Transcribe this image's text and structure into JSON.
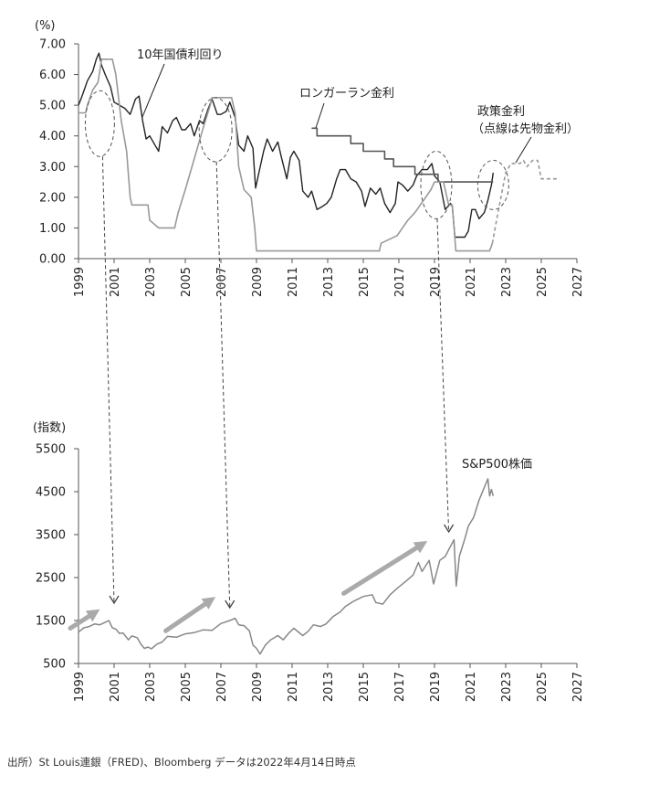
{
  "source_note": "出所）St Louis連銀（FRED)、Bloomberg データは2022年4月14日時点",
  "chart_data": [
    {
      "type": "line",
      "unit_label": "(%)",
      "x_ticks": [
        "1999",
        "2001",
        "2003",
        "2005",
        "2007",
        "2009",
        "2011",
        "2013",
        "2015",
        "2017",
        "2019",
        "2021",
        "2023",
        "2025",
        "2027"
      ],
      "y_ticks": [
        "7.00",
        "6.00",
        "5.00",
        "4.00",
        "3.00",
        "2.00",
        "1.00",
        "0.00"
      ],
      "xlim": [
        1999,
        2027
      ],
      "ylim": [
        0,
        7
      ],
      "annotations": {
        "yield": "10年国債利回り",
        "longrun": "ロンガーラン金利",
        "policy_1": "政策金利",
        "policy_2": "（点線は先物金利）"
      },
      "series": [
        {
          "name": "10年国債利回り",
          "color": "#222222",
          "points": [
            [
              1999.0,
              5.0
            ],
            [
              1999.2,
              5.3
            ],
            [
              1999.5,
              5.8
            ],
            [
              1999.8,
              6.1
            ],
            [
              2000.0,
              6.5
            ],
            [
              2000.15,
              6.7
            ],
            [
              2000.3,
              6.3
            ],
            [
              2000.5,
              6.0
            ],
            [
              2000.8,
              5.6
            ],
            [
              2001.0,
              5.1
            ],
            [
              2001.3,
              5.0
            ],
            [
              2001.6,
              4.9
            ],
            [
              2001.9,
              4.7
            ],
            [
              2002.2,
              5.2
            ],
            [
              2002.4,
              5.3
            ],
            [
              2002.6,
              4.5
            ],
            [
              2002.8,
              3.9
            ],
            [
              2003.0,
              4.0
            ],
            [
              2003.3,
              3.7
            ],
            [
              2003.5,
              3.5
            ],
            [
              2003.7,
              4.3
            ],
            [
              2004.0,
              4.1
            ],
            [
              2004.3,
              4.5
            ],
            [
              2004.5,
              4.6
            ],
            [
              2004.8,
              4.2
            ],
            [
              2005.0,
              4.2
            ],
            [
              2005.3,
              4.4
            ],
            [
              2005.5,
              4.0
            ],
            [
              2005.8,
              4.5
            ],
            [
              2006.0,
              4.4
            ],
            [
              2006.3,
              4.9
            ],
            [
              2006.5,
              5.2
            ],
            [
              2006.8,
              4.7
            ],
            [
              2007.0,
              4.7
            ],
            [
              2007.3,
              4.8
            ],
            [
              2007.5,
              5.1
            ],
            [
              2007.8,
              4.6
            ],
            [
              2008.0,
              3.7
            ],
            [
              2008.3,
              3.5
            ],
            [
              2008.5,
              4.0
            ],
            [
              2008.8,
              3.6
            ],
            [
              2008.95,
              2.3
            ],
            [
              2009.1,
              2.7
            ],
            [
              2009.4,
              3.5
            ],
            [
              2009.6,
              3.9
            ],
            [
              2009.9,
              3.5
            ],
            [
              2010.2,
              3.8
            ],
            [
              2010.4,
              3.3
            ],
            [
              2010.7,
              2.6
            ],
            [
              2010.9,
              3.3
            ],
            [
              2011.1,
              3.5
            ],
            [
              2011.4,
              3.2
            ],
            [
              2011.6,
              2.2
            ],
            [
              2011.9,
              2.0
            ],
            [
              2012.1,
              2.2
            ],
            [
              2012.4,
              1.6
            ],
            [
              2012.7,
              1.7
            ],
            [
              2012.95,
              1.8
            ],
            [
              2013.2,
              2.0
            ],
            [
              2013.5,
              2.6
            ],
            [
              2013.7,
              2.9
            ],
            [
              2014.0,
              2.9
            ],
            [
              2014.3,
              2.6
            ],
            [
              2014.6,
              2.5
            ],
            [
              2014.9,
              2.2
            ],
            [
              2015.1,
              1.7
            ],
            [
              2015.4,
              2.3
            ],
            [
              2015.7,
              2.1
            ],
            [
              2015.95,
              2.3
            ],
            [
              2016.2,
              1.8
            ],
            [
              2016.5,
              1.5
            ],
            [
              2016.8,
              1.8
            ],
            [
              2016.95,
              2.5
            ],
            [
              2017.2,
              2.4
            ],
            [
              2017.5,
              2.2
            ],
            [
              2017.8,
              2.4
            ],
            [
              2018.0,
              2.7
            ],
            [
              2018.3,
              2.9
            ],
            [
              2018.6,
              2.9
            ],
            [
              2018.85,
              3.1
            ],
            [
              2019.0,
              2.7
            ],
            [
              2019.3,
              2.5
            ],
            [
              2019.6,
              1.6
            ],
            [
              2019.9,
              1.8
            ],
            [
              2020.0,
              1.7
            ],
            [
              2020.15,
              0.7
            ],
            [
              2020.4,
              0.7
            ],
            [
              2020.7,
              0.7
            ],
            [
              2020.9,
              0.9
            ],
            [
              2021.1,
              1.6
            ],
            [
              2021.3,
              1.6
            ],
            [
              2021.5,
              1.3
            ],
            [
              2021.8,
              1.5
            ],
            [
              2022.0,
              1.9
            ],
            [
              2022.2,
              2.4
            ],
            [
              2022.3,
              2.8
            ]
          ]
        },
        {
          "name": "ロンガーラン金利",
          "color": "#555555",
          "points": [
            [
              2012.1,
              4.25
            ],
            [
              2012.4,
              4.25
            ],
            [
              2012.4,
              4.0
            ],
            [
              2014.3,
              4.0
            ],
            [
              2014.3,
              3.75
            ],
            [
              2015.0,
              3.75
            ],
            [
              2015.0,
              3.5
            ],
            [
              2016.2,
              3.5
            ],
            [
              2016.2,
              3.25
            ],
            [
              2016.7,
              3.25
            ],
            [
              2016.7,
              3.0
            ],
            [
              2017.9,
              3.0
            ],
            [
              2017.9,
              2.75
            ],
            [
              2019.2,
              2.75
            ],
            [
              2019.2,
              2.5
            ],
            [
              2022.3,
              2.5
            ]
          ]
        },
        {
          "name": "政策金利",
          "color": "#999999",
          "points": [
            [
              1999.0,
              4.75
            ],
            [
              1999.4,
              4.75
            ],
            [
              1999.5,
              5.0
            ],
            [
              1999.8,
              5.5
            ],
            [
              2000.1,
              5.75
            ],
            [
              2000.3,
              6.5
            ],
            [
              2000.9,
              6.5
            ],
            [
              2001.1,
              6.0
            ],
            [
              2001.4,
              4.5
            ],
            [
              2001.7,
              3.5
            ],
            [
              2001.9,
              2.0
            ],
            [
              2002.0,
              1.75
            ],
            [
              2002.9,
              1.75
            ],
            [
              2003.0,
              1.25
            ],
            [
              2003.5,
              1.0
            ],
            [
              2004.4,
              1.0
            ],
            [
              2004.6,
              1.5
            ],
            [
              2005.0,
              2.25
            ],
            [
              2005.5,
              3.25
            ],
            [
              2006.0,
              4.25
            ],
            [
              2006.4,
              5.0
            ],
            [
              2006.5,
              5.25
            ],
            [
              2007.6,
              5.25
            ],
            [
              2007.8,
              4.75
            ],
            [
              2008.0,
              3.0
            ],
            [
              2008.3,
              2.25
            ],
            [
              2008.7,
              2.0
            ],
            [
              2008.9,
              1.0
            ],
            [
              2009.0,
              0.25
            ],
            [
              2015.9,
              0.25
            ],
            [
              2016.0,
              0.5
            ],
            [
              2016.9,
              0.75
            ],
            [
              2017.2,
              1.0
            ],
            [
              2017.5,
              1.25
            ],
            [
              2017.9,
              1.5
            ],
            [
              2018.2,
              1.75
            ],
            [
              2018.5,
              2.0
            ],
            [
              2018.8,
              2.25
            ],
            [
              2019.0,
              2.5
            ],
            [
              2019.5,
              2.5
            ],
            [
              2019.6,
              2.25
            ],
            [
              2019.8,
              1.75
            ],
            [
              2020.0,
              1.75
            ],
            [
              2020.2,
              0.25
            ],
            [
              2022.1,
              0.25
            ],
            [
              2022.25,
              0.5
            ]
          ]
        },
        {
          "name": "先物金利",
          "color": "#999999",
          "dashed": true,
          "points": [
            [
              2022.25,
              0.5
            ],
            [
              2022.5,
              1.3
            ],
            [
              2022.8,
              2.2
            ],
            [
              2023.0,
              2.8
            ],
            [
              2023.3,
              3.1
            ],
            [
              2023.8,
              3.1
            ],
            [
              2024.0,
              3.2
            ],
            [
              2024.2,
              3.0
            ],
            [
              2024.5,
              3.2
            ],
            [
              2024.8,
              3.2
            ],
            [
              2025.0,
              2.6
            ],
            [
              2026.0,
              2.6
            ]
          ]
        }
      ],
      "highlight_years": [
        2000.2,
        2006.7,
        2019.1,
        2022.3
      ]
    },
    {
      "type": "line",
      "unit_label": "(指数)",
      "x_ticks": [
        "1999",
        "2001",
        "2003",
        "2005",
        "2007",
        "2009",
        "2011",
        "2013",
        "2015",
        "2017",
        "2019",
        "2021",
        "2023",
        "2025",
        "2027"
      ],
      "y_ticks": [
        "5500",
        "4500",
        "3500",
        "2500",
        "1500",
        "500"
      ],
      "xlim": [
        1999,
        2027
      ],
      "ylim": [
        500,
        5500
      ],
      "annotations": {
        "sp500": "S&P500株価"
      },
      "series": [
        {
          "name": "S&P500株価",
          "color": "#888888",
          "points": [
            [
              1999.0,
              1230
            ],
            [
              1999.3,
              1330
            ],
            [
              1999.6,
              1360
            ],
            [
              1999.9,
              1420
            ],
            [
              2000.2,
              1400
            ],
            [
              2000.5,
              1460
            ],
            [
              2000.7,
              1500
            ],
            [
              2000.9,
              1330
            ],
            [
              2001.1,
              1300
            ],
            [
              2001.3,
              1200
            ],
            [
              2001.5,
              1210
            ],
            [
              2001.8,
              1050
            ],
            [
              2002.0,
              1140
            ],
            [
              2002.3,
              1100
            ],
            [
              2002.5,
              950
            ],
            [
              2002.7,
              850
            ],
            [
              2002.9,
              880
            ],
            [
              2003.1,
              840
            ],
            [
              2003.4,
              950
            ],
            [
              2003.7,
              1000
            ],
            [
              2004.0,
              1130
            ],
            [
              2004.5,
              1110
            ],
            [
              2005.0,
              1190
            ],
            [
              2005.5,
              1220
            ],
            [
              2006.0,
              1280
            ],
            [
              2006.5,
              1270
            ],
            [
              2007.0,
              1430
            ],
            [
              2007.5,
              1500
            ],
            [
              2007.8,
              1550
            ],
            [
              2008.0,
              1400
            ],
            [
              2008.3,
              1380
            ],
            [
              2008.6,
              1260
            ],
            [
              2008.8,
              930
            ],
            [
              2009.0,
              850
            ],
            [
              2009.2,
              720
            ],
            [
              2009.5,
              930
            ],
            [
              2009.8,
              1050
            ],
            [
              2010.2,
              1150
            ],
            [
              2010.5,
              1050
            ],
            [
              2010.8,
              1200
            ],
            [
              2011.1,
              1320
            ],
            [
              2011.6,
              1150
            ],
            [
              2011.9,
              1250
            ],
            [
              2012.2,
              1400
            ],
            [
              2012.6,
              1360
            ],
            [
              2012.9,
              1420
            ],
            [
              2013.3,
              1590
            ],
            [
              2013.7,
              1700
            ],
            [
              2014.0,
              1830
            ],
            [
              2014.5,
              1960
            ],
            [
              2015.0,
              2060
            ],
            [
              2015.5,
              2100
            ],
            [
              2015.7,
              1920
            ],
            [
              2016.1,
              1880
            ],
            [
              2016.5,
              2100
            ],
            [
              2016.9,
              2250
            ],
            [
              2017.3,
              2380
            ],
            [
              2017.8,
              2560
            ],
            [
              2018.1,
              2850
            ],
            [
              2018.3,
              2640
            ],
            [
              2018.7,
              2900
            ],
            [
              2018.95,
              2350
            ],
            [
              2019.3,
              2900
            ],
            [
              2019.6,
              2990
            ],
            [
              2019.9,
              3230
            ],
            [
              2020.1,
              3380
            ],
            [
              2020.22,
              2300
            ],
            [
              2020.4,
              3000
            ],
            [
              2020.7,
              3400
            ],
            [
              2020.9,
              3700
            ],
            [
              2021.2,
              3900
            ],
            [
              2021.5,
              4300
            ],
            [
              2021.8,
              4600
            ],
            [
              2022.0,
              4800
            ],
            [
              2022.1,
              4400
            ],
            [
              2022.2,
              4550
            ],
            [
              2022.3,
              4400
            ]
          ]
        }
      ],
      "arrows": [
        [
          1999.0,
          2000.2
        ],
        [
          2003.9,
          2006.7
        ],
        [
          2013.9,
          2018.6
        ]
      ]
    }
  ]
}
